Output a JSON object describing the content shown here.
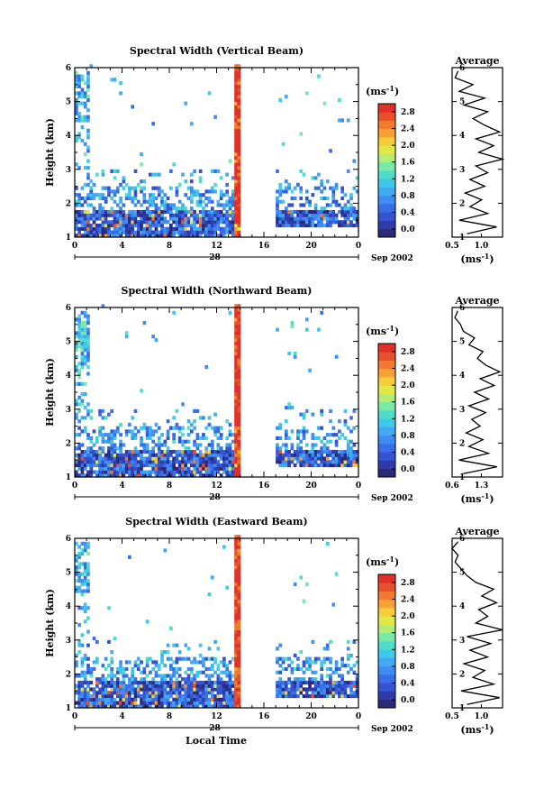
{
  "figure": {
    "date_label": "Sep 2002",
    "day_label": "28",
    "xlabel_bottom": "Local Time"
  },
  "colorbar": {
    "unit_label": "(ms",
    "unit_sup": "-1",
    "unit_close": ")",
    "ticks": [
      "2.8",
      "2.4",
      "2.0",
      "1.6",
      "1.2",
      "0.8",
      "0.4",
      "0.0"
    ],
    "colors": [
      "#2a2a78",
      "#2f3ca8",
      "#3353d0",
      "#3a6ee8",
      "#3f8cf2",
      "#42aaf2",
      "#3fc8e8",
      "#4fdccc",
      "#7ae8a8",
      "#b4ec74",
      "#e0e84a",
      "#f6cc3a",
      "#f7a033",
      "#f27a30",
      "#e6502c",
      "#e03028"
    ]
  },
  "chart_data": [
    {
      "type": "heatmap",
      "title": "Spectral Width (Vertical Beam)",
      "ylabel": "Height (km)",
      "yticks": [
        "1",
        "2",
        "3",
        "4",
        "5",
        "6"
      ],
      "xticks": [
        "0",
        "4",
        "8",
        "12",
        "16",
        "20",
        "0"
      ],
      "xlim": [
        0,
        24
      ],
      "ylim": [
        1,
        6
      ],
      "value_range": [
        0.0,
        2.8
      ],
      "data_gap_hours": [
        14.0,
        16.8
      ],
      "average_profile": {
        "title": "Average",
        "xlabel": "(ms",
        "xlabel_sup": "-1",
        "xlabel_close": ")",
        "xticks": [
          "0.5",
          "1.0"
        ],
        "xlim": [
          0.5,
          1.35
        ],
        "height": [
          1.1,
          1.3,
          1.5,
          1.7,
          1.9,
          2.1,
          2.3,
          2.5,
          2.7,
          2.9,
          3.1,
          3.3,
          3.5,
          3.7,
          3.9,
          4.1,
          4.3,
          4.5,
          4.7,
          4.9,
          5.1,
          5.3,
          5.5,
          5.7,
          5.9
        ],
        "width": [
          0.75,
          1.25,
          0.62,
          1.1,
          0.8,
          1.0,
          0.72,
          1.05,
          0.8,
          1.1,
          0.9,
          1.35,
          0.95,
          1.2,
          0.9,
          1.3,
          1.05,
          0.85,
          1.1,
          0.7,
          1.05,
          0.62,
          0.85,
          0.55,
          0.6
        ]
      }
    },
    {
      "type": "heatmap",
      "title": "Spectral Width (Northward Beam)",
      "ylabel": "Height (km)",
      "yticks": [
        "1",
        "2",
        "3",
        "4",
        "5",
        "6"
      ],
      "xticks": [
        "0",
        "4",
        "8",
        "12",
        "16",
        "20",
        "0"
      ],
      "xlim": [
        0,
        24
      ],
      "ylim": [
        1,
        6
      ],
      "value_range": [
        0.0,
        2.8
      ],
      "data_gap_hours": [
        14.0,
        16.8
      ],
      "average_profile": {
        "title": "Average",
        "xlabel": "(ms",
        "xlabel_sup": "-1",
        "xlabel_close": ")",
        "xticks": [
          "0.6",
          "1.3"
        ],
        "xlim": [
          0.5,
          1.4
        ],
        "height": [
          1.1,
          1.3,
          1.5,
          1.7,
          1.9,
          2.1,
          2.3,
          2.5,
          2.7,
          2.9,
          3.1,
          3.3,
          3.5,
          3.7,
          3.9,
          4.1,
          4.3,
          4.5,
          4.7,
          4.9,
          5.1,
          5.3,
          5.5,
          5.7,
          5.9
        ],
        "width": [
          0.7,
          1.3,
          0.62,
          1.15,
          0.8,
          1.05,
          0.75,
          1.0,
          0.85,
          1.1,
          0.8,
          1.15,
          0.9,
          1.25,
          1.0,
          1.35,
          1.1,
          0.95,
          1.05,
          0.8,
          0.9,
          0.7,
          0.65,
          0.55,
          0.6
        ]
      }
    },
    {
      "type": "heatmap",
      "title": "Spectral Width (Eastward Beam)",
      "ylabel": "Height (km)",
      "yticks": [
        "1",
        "2",
        "3",
        "4",
        "5",
        "6"
      ],
      "xticks": [
        "0",
        "4",
        "8",
        "12",
        "16",
        "20",
        "0"
      ],
      "xlim": [
        0,
        24
      ],
      "ylim": [
        1,
        6
      ],
      "value_range": [
        0.0,
        2.8
      ],
      "data_gap_hours": [
        14.0,
        16.8
      ],
      "average_profile": {
        "title": "Average",
        "xlabel": "(ms",
        "xlabel_sup": "-1",
        "xlabel_close": ")",
        "xticks": [
          "0.5",
          "1.0"
        ],
        "xlim": [
          0.5,
          1.35
        ],
        "height": [
          1.1,
          1.3,
          1.5,
          1.7,
          1.9,
          2.1,
          2.3,
          2.5,
          2.7,
          2.9,
          3.1,
          3.3,
          3.5,
          3.7,
          3.9,
          4.1,
          4.3,
          4.5,
          4.7,
          4.9,
          5.1,
          5.3,
          5.5,
          5.7,
          5.9
        ],
        "width": [
          0.75,
          1.3,
          0.65,
          1.2,
          0.85,
          1.05,
          0.7,
          1.1,
          0.8,
          1.15,
          0.75,
          1.35,
          0.9,
          1.1,
          0.95,
          1.25,
          1.0,
          1.2,
          0.9,
          0.75,
          0.65,
          0.55,
          0.6,
          0.5,
          0.6
        ]
      }
    }
  ]
}
